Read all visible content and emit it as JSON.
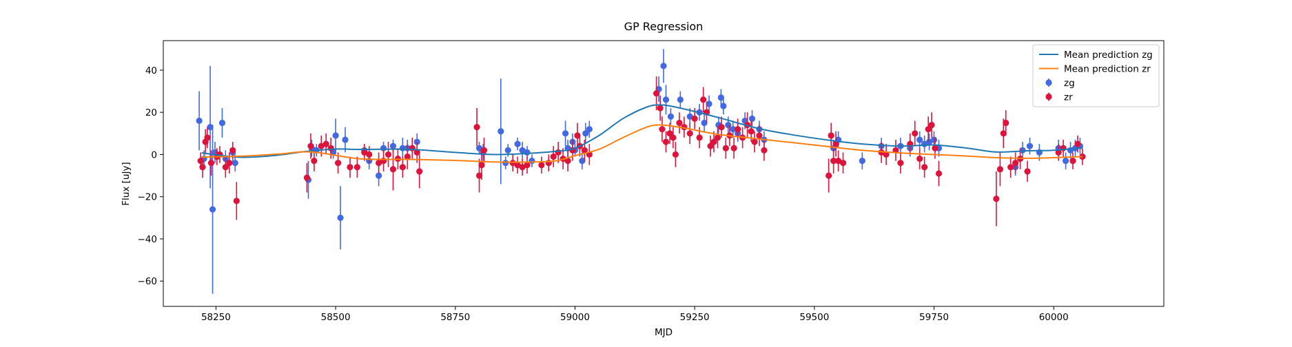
{
  "chart_data": {
    "type": "scatter",
    "title": "GP Regression",
    "xlabel": "MJD",
    "ylabel": "Flux [uJy]",
    "xlim": [
      58140,
      60230
    ],
    "ylim": [
      -72,
      54
    ],
    "x_ticks": [
      58250,
      58500,
      58750,
      59000,
      59250,
      59500,
      59750,
      60000
    ],
    "y_ticks": [
      -60,
      -40,
      -20,
      0,
      20,
      40
    ],
    "legend_position": "upper right",
    "legend": [
      "Mean prediction zg",
      "Mean prediction zr",
      "zg",
      "zr"
    ],
    "series": [
      {
        "name": "Mean prediction zg",
        "kind": "line",
        "color": "#1f77b4",
        "points": [
          [
            58220,
            0.8
          ],
          [
            58300,
            -1.3
          ],
          [
            58370,
            -0.5
          ],
          [
            58440,
            1.5
          ],
          [
            58500,
            2.6
          ],
          [
            58550,
            2.4
          ],
          [
            58650,
            2.5
          ],
          [
            58750,
            1.0
          ],
          [
            58830,
            0.0
          ],
          [
            58900,
            0.5
          ],
          [
            58960,
            1.5
          ],
          [
            59000,
            3.0
          ],
          [
            59050,
            9.0
          ],
          [
            59100,
            17.0
          ],
          [
            59150,
            22.5
          ],
          [
            59180,
            23.5
          ],
          [
            59220,
            22.0
          ],
          [
            59300,
            17.5
          ],
          [
            59380,
            12.5
          ],
          [
            59450,
            9.5
          ],
          [
            59540,
            6.5
          ],
          [
            59600,
            5.0
          ],
          [
            59680,
            4.0
          ],
          [
            59750,
            4.5
          ],
          [
            59820,
            3.0
          ],
          [
            59880,
            1.2
          ],
          [
            59950,
            1.8
          ],
          [
            60000,
            2.0
          ],
          [
            60060,
            3.2
          ]
        ]
      },
      {
        "name": "Mean prediction zr",
        "kind": "line",
        "color": "#ff7f0e",
        "points": [
          [
            58220,
            -1.2
          ],
          [
            58300,
            -0.8
          ],
          [
            58380,
            0.2
          ],
          [
            58450,
            1.2
          ],
          [
            58550,
            -2.0
          ],
          [
            58650,
            -2.3
          ],
          [
            58750,
            -2.8
          ],
          [
            58830,
            -3.5
          ],
          [
            58900,
            -3.6
          ],
          [
            58960,
            -3.0
          ],
          [
            59000,
            -0.5
          ],
          [
            59050,
            2.5
          ],
          [
            59100,
            8.0
          ],
          [
            59150,
            13.0
          ],
          [
            59180,
            14.0
          ],
          [
            59230,
            12.5
          ],
          [
            59300,
            9.5
          ],
          [
            59400,
            7.0
          ],
          [
            59500,
            4.5
          ],
          [
            59600,
            2.0
          ],
          [
            59700,
            0.5
          ],
          [
            59800,
            -0.5
          ],
          [
            59880,
            -1.5
          ],
          [
            59950,
            -1.8
          ],
          [
            60000,
            -1.5
          ],
          [
            60060,
            -1.0
          ]
        ]
      },
      {
        "name": "zg",
        "kind": "errorbar",
        "color": "#4169e1",
        "points": [
          [
            58215,
            16,
            14
          ],
          [
            58225,
            -2,
            4
          ],
          [
            58238,
            13,
            29
          ],
          [
            58243,
            -26,
            40
          ],
          [
            58248,
            1,
            5
          ],
          [
            58263,
            15,
            7
          ],
          [
            58270,
            -2,
            4
          ],
          [
            58285,
            1,
            5
          ],
          [
            58290,
            -4,
            4
          ],
          [
            58443,
            -12,
            9
          ],
          [
            58450,
            3,
            4
          ],
          [
            58460,
            2,
            3
          ],
          [
            58495,
            1,
            3
          ],
          [
            58500,
            9,
            8
          ],
          [
            58510,
            -30,
            15
          ],
          [
            58520,
            7,
            6
          ],
          [
            58560,
            2,
            3
          ],
          [
            58570,
            -3,
            4
          ],
          [
            58590,
            -10,
            5
          ],
          [
            58600,
            3,
            3
          ],
          [
            58620,
            4,
            3
          ],
          [
            58640,
            3,
            5
          ],
          [
            58650,
            3,
            4
          ],
          [
            58670,
            6,
            4
          ],
          [
            58800,
            3,
            3
          ],
          [
            58808,
            1,
            4
          ],
          [
            58845,
            11,
            25
          ],
          [
            58855,
            -4,
            3
          ],
          [
            58860,
            2,
            3
          ],
          [
            58880,
            5,
            3
          ],
          [
            58890,
            2,
            4
          ],
          [
            58900,
            1,
            3
          ],
          [
            58910,
            -3,
            3
          ],
          [
            58980,
            10,
            6
          ],
          [
            58985,
            3,
            4
          ],
          [
            58995,
            6,
            4
          ],
          [
            59000,
            2,
            3
          ],
          [
            59015,
            -3,
            4
          ],
          [
            59022,
            10,
            5
          ],
          [
            59030,
            12,
            4
          ],
          [
            59175,
            31,
            6
          ],
          [
            59185,
            42,
            8
          ],
          [
            59190,
            26,
            7
          ],
          [
            59200,
            18,
            4
          ],
          [
            59220,
            26,
            4
          ],
          [
            59240,
            18,
            4
          ],
          [
            59260,
            20,
            4
          ],
          [
            59270,
            15,
            4
          ],
          [
            59280,
            24,
            4
          ],
          [
            59300,
            14,
            4
          ],
          [
            59305,
            27,
            4
          ],
          [
            59310,
            23,
            4
          ],
          [
            59320,
            14,
            4
          ],
          [
            59330,
            12,
            4
          ],
          [
            59340,
            10,
            4
          ],
          [
            59355,
            16,
            4
          ],
          [
            59370,
            17,
            4
          ],
          [
            59385,
            12,
            4
          ],
          [
            59395,
            7,
            4
          ],
          [
            59540,
            3,
            4
          ],
          [
            59550,
            7,
            4
          ],
          [
            59600,
            -3,
            4
          ],
          [
            59640,
            4,
            4
          ],
          [
            59680,
            4,
            4
          ],
          [
            59700,
            3,
            4
          ],
          [
            59720,
            7,
            4
          ],
          [
            59730,
            5,
            4
          ],
          [
            59740,
            6,
            4
          ],
          [
            59750,
            7,
            4
          ],
          [
            59760,
            3,
            4
          ],
          [
            59920,
            -6,
            4
          ],
          [
            59935,
            2,
            4
          ],
          [
            59950,
            4,
            4
          ],
          [
            59970,
            1,
            4
          ],
          [
            60010,
            3,
            4
          ],
          [
            60025,
            -3,
            4
          ],
          [
            60035,
            2,
            4
          ],
          [
            60045,
            3,
            4
          ],
          [
            60055,
            4,
            4
          ]
        ]
      },
      {
        "name": "zr",
        "kind": "errorbar",
        "color": "#dc143c",
        "points": [
          [
            58218,
            -3,
            4
          ],
          [
            58222,
            -6,
            5
          ],
          [
            58228,
            6,
            6
          ],
          [
            58232,
            8,
            5
          ],
          [
            58240,
            -4,
            6
          ],
          [
            58252,
            -1,
            4
          ],
          [
            58258,
            0,
            4
          ],
          [
            58270,
            -6,
            5
          ],
          [
            58278,
            -4,
            5
          ],
          [
            58285,
            2,
            4
          ],
          [
            58293,
            -22,
            9
          ],
          [
            58440,
            -11,
            7
          ],
          [
            58448,
            4,
            6
          ],
          [
            58455,
            -3,
            5
          ],
          [
            58470,
            4,
            5
          ],
          [
            58480,
            5,
            5
          ],
          [
            58490,
            3,
            5
          ],
          [
            58505,
            -4,
            5
          ],
          [
            58530,
            -6,
            5
          ],
          [
            58545,
            -6,
            5
          ],
          [
            58560,
            1,
            4
          ],
          [
            58570,
            0,
            4
          ],
          [
            58590,
            -4,
            5
          ],
          [
            58600,
            -3,
            5
          ],
          [
            58610,
            0,
            6
          ],
          [
            58620,
            -7,
            10
          ],
          [
            58630,
            -2,
            5
          ],
          [
            58640,
            -6,
            5
          ],
          [
            58650,
            -1,
            6
          ],
          [
            58660,
            3,
            5
          ],
          [
            58670,
            1,
            5
          ],
          [
            58675,
            -8,
            8
          ],
          [
            58795,
            13,
            9
          ],
          [
            58800,
            -10,
            8
          ],
          [
            58805,
            -5,
            7
          ],
          [
            58810,
            2,
            6
          ],
          [
            58870,
            -4,
            4
          ],
          [
            58880,
            -5,
            4
          ],
          [
            58890,
            -6,
            4
          ],
          [
            58900,
            -5,
            4
          ],
          [
            58930,
            -5,
            4
          ],
          [
            58945,
            -4,
            4
          ],
          [
            58955,
            -1,
            5
          ],
          [
            58965,
            1,
            5
          ],
          [
            58975,
            -2,
            5
          ],
          [
            58985,
            -3,
            5
          ],
          [
            58995,
            2,
            5
          ],
          [
            59005,
            9,
            6
          ],
          [
            59010,
            4,
            5
          ],
          [
            59020,
            2,
            5
          ],
          [
            59030,
            0,
            5
          ],
          [
            59170,
            29,
            8
          ],
          [
            59178,
            22,
            6
          ],
          [
            59182,
            12,
            6
          ],
          [
            59190,
            6,
            5
          ],
          [
            59198,
            10,
            5
          ],
          [
            59205,
            8,
            5
          ],
          [
            59210,
            0,
            6
          ],
          [
            59218,
            15,
            5
          ],
          [
            59228,
            13,
            5
          ],
          [
            59240,
            10,
            5
          ],
          [
            59250,
            17,
            5
          ],
          [
            59260,
            8,
            5
          ],
          [
            59268,
            26,
            6
          ],
          [
            59275,
            20,
            5
          ],
          [
            59283,
            4,
            5
          ],
          [
            59290,
            6,
            5
          ],
          [
            59298,
            8,
            5
          ],
          [
            59306,
            13,
            5
          ],
          [
            59315,
            3,
            5
          ],
          [
            59323,
            9,
            5
          ],
          [
            59332,
            3,
            5
          ],
          [
            59340,
            12,
            5
          ],
          [
            59350,
            8,
            5
          ],
          [
            59360,
            14,
            6
          ],
          [
            59368,
            11,
            5
          ],
          [
            59375,
            6,
            5
          ],
          [
            59385,
            9,
            5
          ],
          [
            59395,
            2,
            5
          ],
          [
            59530,
            -10,
            8
          ],
          [
            59535,
            9,
            6
          ],
          [
            59540,
            -3,
            6
          ],
          [
            59545,
            5,
            6
          ],
          [
            59550,
            -3,
            5
          ],
          [
            59560,
            -4,
            5
          ],
          [
            59640,
            1,
            5
          ],
          [
            59650,
            0,
            5
          ],
          [
            59670,
            2,
            5
          ],
          [
            59680,
            -4,
            5
          ],
          [
            59700,
            5,
            5
          ],
          [
            59710,
            10,
            6
          ],
          [
            59720,
            -2,
            5
          ],
          [
            59730,
            -6,
            5
          ],
          [
            59738,
            12,
            6
          ],
          [
            59745,
            14,
            6
          ],
          [
            59752,
            3,
            5
          ],
          [
            59760,
            -9,
            6
          ],
          [
            59880,
            -21,
            13
          ],
          [
            59888,
            -7,
            8
          ],
          [
            59895,
            10,
            7
          ],
          [
            59900,
            15,
            6
          ],
          [
            59910,
            -6,
            5
          ],
          [
            59920,
            -4,
            5
          ],
          [
            59930,
            -2,
            5
          ],
          [
            59945,
            -8,
            5
          ],
          [
            60010,
            1,
            4
          ],
          [
            60020,
            3,
            4
          ],
          [
            60040,
            -3,
            4
          ],
          [
            60050,
            5,
            4
          ],
          [
            60060,
            -1,
            4
          ]
        ]
      }
    ]
  }
}
